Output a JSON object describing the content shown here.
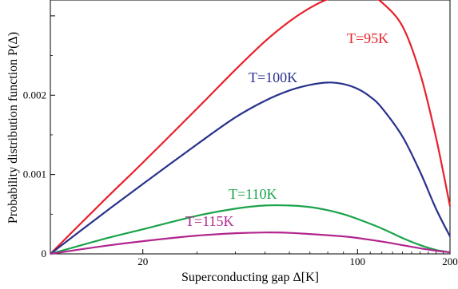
{
  "chart_data": {
    "type": "line",
    "title": "",
    "xlabel": "Superconducting gap  Δ[K]",
    "ylabel": "Probability distribution function  P(Δ)",
    "x_scale": "log",
    "xlim": [
      10,
      200
    ],
    "ylim": [
      0,
      0.0032
    ],
    "x_ticks": [
      20,
      100,
      200
    ],
    "x_tick_labels": [
      "20",
      "100",
      "200"
    ],
    "y_ticks": [
      0,
      0.001,
      0.002
    ],
    "y_tick_labels": [
      "0",
      "0.001",
      "0.002"
    ],
    "grid": false,
    "legend": "none",
    "series": [
      {
        "name": "T=95K",
        "color": "#e8202a",
        "x": [
          10,
          15,
          20,
          30,
          40,
          50,
          60,
          70,
          80,
          90,
          100,
          110,
          120,
          140,
          160,
          180,
          200
        ],
        "y": [
          0,
          0.00068,
          0.00115,
          0.00183,
          0.00232,
          0.00268,
          0.00293,
          0.0031,
          0.00321,
          0.00326,
          0.00327,
          0.00324,
          0.00317,
          0.00287,
          0.00227,
          0.00147,
          0.0006
        ]
      },
      {
        "name": "T=100K",
        "color": "#27318b",
        "x": [
          10,
          15,
          20,
          30,
          40,
          50,
          60,
          70,
          80,
          90,
          100,
          110,
          120,
          140,
          160,
          180,
          200
        ],
        "y": [
          0,
          0.00052,
          0.00088,
          0.00138,
          0.00172,
          0.00193,
          0.00206,
          0.00213,
          0.00216,
          0.00214,
          0.00208,
          0.00198,
          0.00184,
          0.00148,
          0.00103,
          0.00057,
          0.00022
        ]
      },
      {
        "name": "T=110K",
        "color": "#1aa34a",
        "x": [
          10,
          15,
          20,
          30,
          40,
          50,
          60,
          70,
          80,
          90,
          100,
          120,
          140,
          160,
          180,
          200
        ],
        "y": [
          0,
          0.00019,
          0.00031,
          0.00048,
          0.00057,
          0.00061,
          0.00061,
          0.00059,
          0.00055,
          0.0005,
          0.00044,
          0.00032,
          0.0002,
          0.00011,
          5e-05,
          2e-05
        ]
      },
      {
        "name": "T=115K",
        "color": "#b2268e",
        "x": [
          10,
          15,
          20,
          30,
          40,
          50,
          60,
          70,
          80,
          90,
          100,
          120,
          140,
          160,
          180,
          200
        ],
        "y": [
          0,
          0.0001,
          0.00016,
          0.00023,
          0.00026,
          0.00027,
          0.000265,
          0.00025,
          0.000235,
          0.00022,
          0.0002,
          0.000155,
          0.00011,
          7e-05,
          4e-05,
          2e-05
        ]
      }
    ]
  }
}
